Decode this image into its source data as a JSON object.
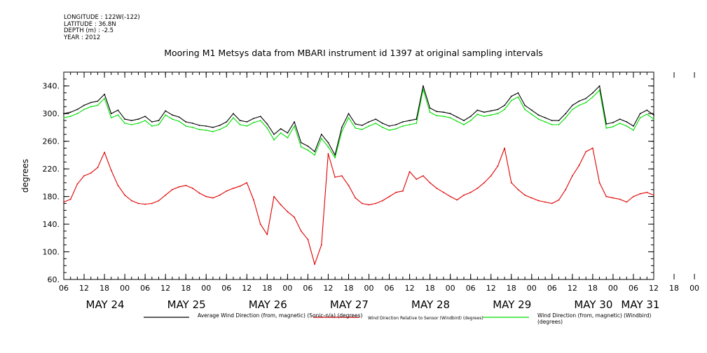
{
  "meta": {
    "longitude": "LONGITUDE : 122W(-122)",
    "latitude": "LATITUDE : 36.8N",
    "depth": "DEPTH (m) : -2.5",
    "year": "YEAR : 2012"
  },
  "colors": {
    "series_black": "#000000",
    "series_red": "#e00000",
    "series_green": "#00dd00"
  },
  "chart_data": {
    "type": "line",
    "title": "Mooring M1 Metsys data from MBARI instrument id 1397 at original sampling intervals",
    "ylabel": "degrees",
    "ylim": [
      60,
      360
    ],
    "yticks": [
      60,
      100,
      140,
      180,
      220,
      260,
      300,
      340
    ],
    "ytick_labels": [
      "60.",
      "100.",
      "140.",
      "180.",
      "220.",
      "260.",
      "300.",
      "340."
    ],
    "x_range_hours": [
      0,
      174
    ],
    "x_tick_labels": [
      "06",
      "12",
      "18",
      "00",
      "06",
      "12",
      "18",
      "00",
      "06",
      "12",
      "18",
      "00",
      "06",
      "12",
      "18",
      "00",
      "06",
      "12",
      "18",
      "00",
      "06",
      "12",
      "18",
      "00",
      "06",
      "12",
      "18",
      "00",
      "06",
      "12",
      "18",
      "00",
      "06"
    ],
    "date_labels": [
      "MAY 24",
      "MAY 25",
      "MAY 26",
      "MAY 27",
      "MAY 28",
      "MAY 29",
      "MAY 30",
      "MAY 31"
    ],
    "date_label_hours": [
      6,
      30,
      54,
      78,
      102,
      126,
      150,
      168
    ],
    "grid": false,
    "legend_position": "bottom",
    "series": [
      {
        "name": "Average Wind Direction (from, magnetic) (Sonic-n/a) (degrees)",
        "color": "#000000",
        "x": [
          0,
          2,
          4,
          6,
          8,
          10,
          12,
          14,
          16,
          18,
          20,
          22,
          24,
          26,
          28,
          30,
          32,
          34,
          36,
          38,
          40,
          42,
          44,
          46,
          48,
          50,
          52,
          54,
          56,
          58,
          60,
          62,
          64,
          66,
          68,
          70,
          72,
          74,
          76,
          78,
          80,
          82,
          84,
          86,
          88,
          90,
          92,
          94,
          96,
          98,
          100,
          102,
          104,
          106,
          108,
          110,
          112,
          114,
          116,
          118,
          120,
          122,
          124,
          126,
          128,
          130,
          132,
          134,
          136,
          138,
          140,
          142,
          144,
          146,
          148,
          150,
          152,
          154,
          156,
          158,
          160,
          162,
          164,
          166,
          168,
          170,
          172,
          174
        ],
        "values": [
          300,
          302,
          306,
          312,
          316,
          318,
          328,
          300,
          305,
          292,
          290,
          292,
          296,
          288,
          290,
          304,
          298,
          295,
          288,
          286,
          283,
          282,
          280,
          283,
          288,
          300,
          290,
          288,
          293,
          296,
          285,
          270,
          278,
          272,
          288,
          258,
          253,
          245,
          270,
          258,
          240,
          280,
          300,
          285,
          283,
          288,
          292,
          286,
          282,
          284,
          288,
          290,
          292,
          340,
          308,
          303,
          302,
          300,
          295,
          290,
          296,
          305,
          302,
          304,
          306,
          312,
          325,
          330,
          312,
          305,
          298,
          294,
          290,
          290,
          300,
          312,
          318,
          322,
          330,
          340,
          285,
          287,
          292,
          288,
          282,
          300,
          305,
          298
        ]
      },
      {
        "name": "Wind Direction Relative to Sensor (Windbird) (degrees)",
        "color": "#e00000",
        "x": [
          0,
          2,
          4,
          6,
          8,
          10,
          12,
          14,
          16,
          18,
          20,
          22,
          24,
          26,
          28,
          30,
          32,
          34,
          36,
          38,
          40,
          42,
          44,
          46,
          48,
          50,
          52,
          54,
          56,
          58,
          60,
          62,
          64,
          66,
          68,
          70,
          72,
          74,
          76,
          78,
          80,
          82,
          84,
          86,
          88,
          90,
          92,
          94,
          96,
          98,
          100,
          102,
          104,
          106,
          108,
          110,
          112,
          114,
          116,
          118,
          120,
          122,
          124,
          126,
          128,
          130,
          132,
          134,
          136,
          138,
          140,
          142,
          144,
          146,
          148,
          150,
          152,
          154,
          156,
          158,
          160,
          162,
          164,
          166,
          168,
          170,
          172,
          174
        ],
        "values": [
          172,
          176,
          198,
          210,
          214,
          222,
          244,
          218,
          196,
          182,
          174,
          170,
          169,
          170,
          174,
          182,
          190,
          194,
          196,
          192,
          185,
          180,
          178,
          182,
          188,
          192,
          195,
          200,
          175,
          140,
          125,
          180,
          168,
          158,
          150,
          130,
          118,
          82,
          110,
          242,
          208,
          210,
          196,
          178,
          170,
          168,
          170,
          174,
          180,
          186,
          188,
          216,
          205,
          210,
          200,
          192,
          186,
          180,
          175,
          182,
          186,
          192,
          200,
          210,
          224,
          250,
          200,
          190,
          182,
          178,
          174,
          172,
          170,
          175,
          190,
          210,
          225,
          245,
          250,
          200,
          180,
          178,
          176,
          172,
          180,
          184,
          186,
          182
        ]
      },
      {
        "name": "Wind Direction (from, magnetic) (Windbird) (degrees)",
        "color": "#00dd00",
        "x": [
          0,
          2,
          4,
          6,
          8,
          10,
          12,
          14,
          16,
          18,
          20,
          22,
          24,
          26,
          28,
          30,
          32,
          34,
          36,
          38,
          40,
          42,
          44,
          46,
          48,
          50,
          52,
          54,
          56,
          58,
          60,
          62,
          64,
          66,
          68,
          70,
          72,
          74,
          76,
          78,
          80,
          82,
          84,
          86,
          88,
          90,
          92,
          94,
          96,
          98,
          100,
          102,
          104,
          106,
          108,
          110,
          112,
          114,
          116,
          118,
          120,
          122,
          124,
          126,
          128,
          130,
          132,
          134,
          136,
          138,
          140,
          142,
          144,
          146,
          148,
          150,
          152,
          154,
          156,
          158,
          160,
          162,
          164,
          166,
          168,
          170,
          172,
          174
        ],
        "values": [
          294,
          296,
          300,
          306,
          310,
          312,
          322,
          294,
          298,
          286,
          284,
          286,
          290,
          282,
          284,
          298,
          292,
          289,
          282,
          280,
          277,
          276,
          274,
          277,
          282,
          294,
          284,
          282,
          287,
          290,
          279,
          262,
          272,
          265,
          282,
          252,
          247,
          240,
          264,
          252,
          236,
          274,
          294,
          279,
          277,
          282,
          286,
          280,
          276,
          278,
          282,
          284,
          286,
          335,
          302,
          297,
          296,
          294,
          289,
          284,
          290,
          299,
          296,
          298,
          300,
          306,
          319,
          324,
          306,
          299,
          292,
          288,
          284,
          284,
          294,
          306,
          312,
          316,
          324,
          334,
          279,
          281,
          286,
          282,
          276,
          294,
          299,
          292
        ]
      }
    ]
  }
}
